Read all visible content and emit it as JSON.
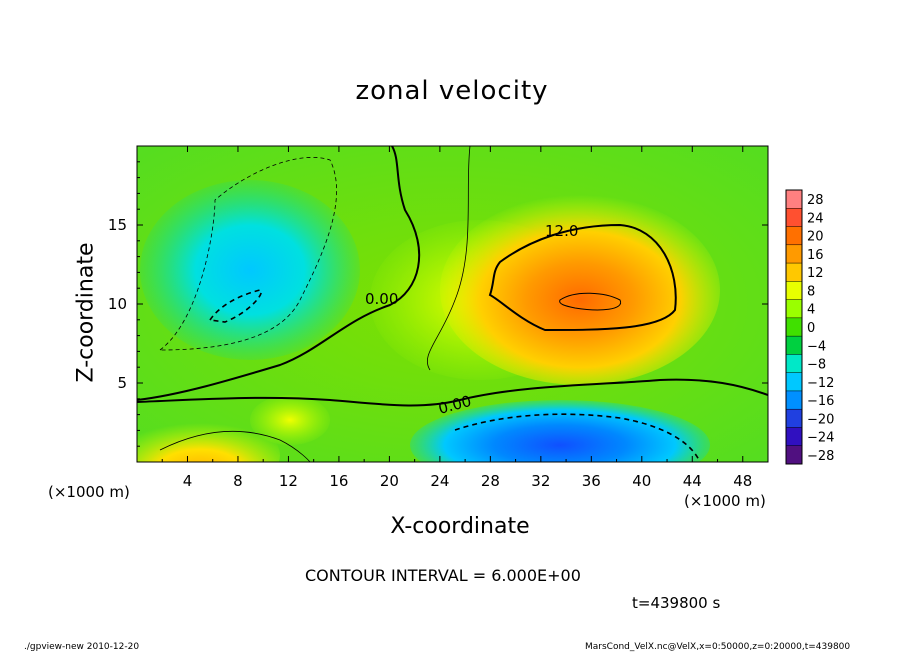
{
  "chart_data": {
    "type": "heatmap",
    "title": "zonal velocity",
    "xlabel": "X-coordinate",
    "ylabel": "Z-coordinate",
    "x_unit": "(×1000 m)",
    "y_unit": "(×1000 m)",
    "xlim": [
      0,
      50
    ],
    "ylim": [
      0,
      20
    ],
    "x_ticks": [
      "4",
      "8",
      "12",
      "16",
      "20",
      "24",
      "28",
      "32",
      "36",
      "40",
      "44",
      "48"
    ],
    "y_ticks": [
      "5",
      "10",
      "15"
    ],
    "colorbar": {
      "labels": [
        "28",
        "24",
        "20",
        "16",
        "12",
        "8",
        "4",
        "0",
        "−4",
        "−8",
        "−12",
        "−16",
        "−20",
        "−24",
        "−28"
      ],
      "colors": [
        "#ff8080",
        "#ff5030",
        "#ff7000",
        "#ff9a00",
        "#ffc800",
        "#e8ff00",
        "#9aff00",
        "#40e000",
        "#00d040",
        "#00e8c8",
        "#00c8ff",
        "#0090ff",
        "#2040e0",
        "#3010c0",
        "#501080"
      ]
    },
    "contour_labels": [
      "12.0",
      "0.00",
      "0.00"
    ],
    "features": [
      {
        "name": "positive core",
        "x": 35,
        "z": 10.3,
        "value": 20
      },
      {
        "name": "negative near-surface",
        "x": 36,
        "z": 1.2,
        "value": -16
      },
      {
        "name": "negative upper-left",
        "x": 7,
        "z": 11,
        "value": -10
      },
      {
        "name": "positive lower-left",
        "x": 6,
        "z": 1,
        "value": 14
      }
    ]
  },
  "contour_interval": "CONTOUR INTERVAL = 6.000E+00",
  "time": "t=439800 s",
  "footer_left": "./gpview-new   2010-12-20",
  "footer_right": "MarsCond_VelX.nc@VelX,x=0:50000,z=0:20000,t=439800"
}
